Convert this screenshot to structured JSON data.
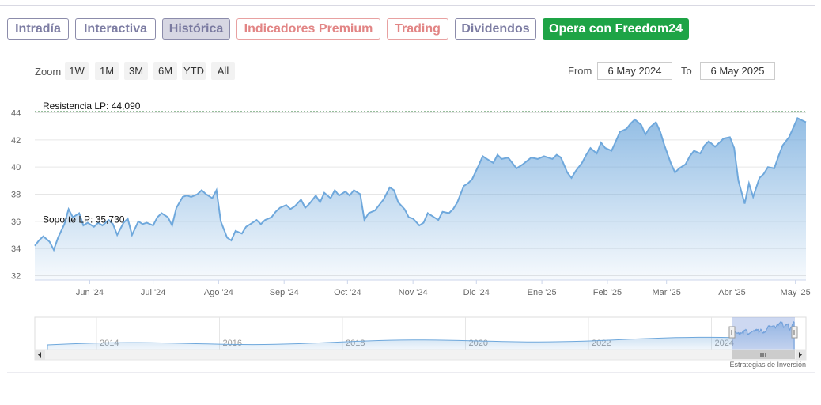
{
  "tabs": [
    {
      "label": "Intradía",
      "style": "normal"
    },
    {
      "label": "Interactiva",
      "style": "normal"
    },
    {
      "label": "Histórica",
      "style": "active"
    },
    {
      "label": "Indicadores Premium",
      "style": "premium"
    },
    {
      "label": "Trading",
      "style": "premium"
    },
    {
      "label": "Dividendos",
      "style": "normal"
    },
    {
      "label": "Opera con Freedom24",
      "style": "cta"
    }
  ],
  "zoom": {
    "label": "Zoom",
    "buttons": [
      "1W",
      "1M",
      "3M",
      "6M",
      "YTD",
      "All"
    ]
  },
  "range": {
    "from_label": "From",
    "from_value": "6 May 2024",
    "to_label": "To",
    "to_value": "6 May 2025"
  },
  "chart_data": {
    "type": "area",
    "ylim": [
      32,
      44
    ],
    "y_ticks": [
      32,
      34,
      36,
      38,
      40,
      42,
      44
    ],
    "x_range": [
      "2024-05-06",
      "2025-05-06"
    ],
    "x_ticks": [
      {
        "label": "Jun '24",
        "date": "2024-06-01"
      },
      {
        "label": "Jul '24",
        "date": "2024-07-01"
      },
      {
        "label": "Ago '24",
        "date": "2024-08-01"
      },
      {
        "label": "Sep '24",
        "date": "2024-09-01"
      },
      {
        "label": "Oct '24",
        "date": "2024-10-01"
      },
      {
        "label": "Nov '24",
        "date": "2024-11-01"
      },
      {
        "label": "Dic '24",
        "date": "2024-12-01"
      },
      {
        "label": "Ene '25",
        "date": "2025-01-01"
      },
      {
        "label": "Feb '25",
        "date": "2025-02-01"
      },
      {
        "label": "Mar '25",
        "date": "2025-03-01"
      },
      {
        "label": "Abr '25",
        "date": "2025-04-01"
      },
      {
        "label": "May '25",
        "date": "2025-05-01"
      }
    ],
    "series": [
      {
        "color": "#6fa8dc",
        "points": [
          [
            "2024-05-06",
            34.2
          ],
          [
            "2024-05-08",
            34.6
          ],
          [
            "2024-05-10",
            34.9
          ],
          [
            "2024-05-13",
            34.5
          ],
          [
            "2024-05-15",
            33.9
          ],
          [
            "2024-05-17",
            34.8
          ],
          [
            "2024-05-20",
            35.8
          ],
          [
            "2024-05-22",
            36.9
          ],
          [
            "2024-05-24",
            36.3
          ],
          [
            "2024-05-27",
            36.6
          ],
          [
            "2024-05-29",
            35.7
          ],
          [
            "2024-05-31",
            35.9
          ],
          [
            "2024-06-03",
            35.6
          ],
          [
            "2024-06-05",
            35.9
          ],
          [
            "2024-06-07",
            35.7
          ],
          [
            "2024-06-10",
            36.1
          ],
          [
            "2024-06-12",
            35.8
          ],
          [
            "2024-06-14",
            35.0
          ],
          [
            "2024-06-17",
            35.9
          ],
          [
            "2024-06-19",
            36.2
          ],
          [
            "2024-06-21",
            35.0
          ],
          [
            "2024-06-24",
            36.0
          ],
          [
            "2024-06-26",
            35.8
          ],
          [
            "2024-06-28",
            35.9
          ],
          [
            "2024-07-01",
            35.7
          ],
          [
            "2024-07-03",
            36.3
          ],
          [
            "2024-07-05",
            36.6
          ],
          [
            "2024-07-08",
            36.3
          ],
          [
            "2024-07-10",
            35.7
          ],
          [
            "2024-07-12",
            37.0
          ],
          [
            "2024-07-15",
            37.8
          ],
          [
            "2024-07-17",
            37.9
          ],
          [
            "2024-07-19",
            37.8
          ],
          [
            "2024-07-22",
            38.0
          ],
          [
            "2024-07-24",
            38.3
          ],
          [
            "2024-07-26",
            38.0
          ],
          [
            "2024-07-29",
            37.7
          ],
          [
            "2024-07-31",
            38.3
          ],
          [
            "2024-08-02",
            36.0
          ],
          [
            "2024-08-05",
            34.8
          ],
          [
            "2024-08-07",
            34.6
          ],
          [
            "2024-08-09",
            35.3
          ],
          [
            "2024-08-12",
            35.1
          ],
          [
            "2024-08-14",
            35.6
          ],
          [
            "2024-08-16",
            35.8
          ],
          [
            "2024-08-19",
            36.1
          ],
          [
            "2024-08-21",
            35.8
          ],
          [
            "2024-08-23",
            36.1
          ],
          [
            "2024-08-26",
            36.3
          ],
          [
            "2024-08-28",
            36.7
          ],
          [
            "2024-08-30",
            37.0
          ],
          [
            "2024-09-02",
            37.2
          ],
          [
            "2024-09-04",
            36.9
          ],
          [
            "2024-09-06",
            37.1
          ],
          [
            "2024-09-09",
            37.6
          ],
          [
            "2024-09-11",
            37.0
          ],
          [
            "2024-09-13",
            37.3
          ],
          [
            "2024-09-16",
            37.9
          ],
          [
            "2024-09-18",
            37.4
          ],
          [
            "2024-09-20",
            38.1
          ],
          [
            "2024-09-23",
            37.7
          ],
          [
            "2024-09-25",
            38.3
          ],
          [
            "2024-09-27",
            37.9
          ],
          [
            "2024-09-30",
            38.2
          ],
          [
            "2024-10-02",
            37.9
          ],
          [
            "2024-10-04",
            38.3
          ],
          [
            "2024-10-07",
            38.0
          ],
          [
            "2024-10-09",
            36.1
          ],
          [
            "2024-10-11",
            36.6
          ],
          [
            "2024-10-14",
            36.8
          ],
          [
            "2024-10-16",
            37.2
          ],
          [
            "2024-10-18",
            37.6
          ],
          [
            "2024-10-21",
            38.5
          ],
          [
            "2024-10-23",
            38.3
          ],
          [
            "2024-10-25",
            37.4
          ],
          [
            "2024-10-28",
            36.9
          ],
          [
            "2024-10-30",
            36.3
          ],
          [
            "2024-11-01",
            36.2
          ],
          [
            "2024-11-04",
            35.7
          ],
          [
            "2024-11-06",
            35.9
          ],
          [
            "2024-11-08",
            36.6
          ],
          [
            "2024-11-11",
            36.3
          ],
          [
            "2024-11-13",
            36.1
          ],
          [
            "2024-11-15",
            36.7
          ],
          [
            "2024-11-18",
            36.6
          ],
          [
            "2024-11-20",
            36.9
          ],
          [
            "2024-11-22",
            37.4
          ],
          [
            "2024-11-25",
            38.6
          ],
          [
            "2024-11-27",
            38.8
          ],
          [
            "2024-11-29",
            39.1
          ],
          [
            "2024-12-02",
            40.1
          ],
          [
            "2024-12-04",
            40.8
          ],
          [
            "2024-12-06",
            40.6
          ],
          [
            "2024-12-09",
            40.3
          ],
          [
            "2024-12-11",
            40.9
          ],
          [
            "2024-12-13",
            40.6
          ],
          [
            "2024-12-16",
            40.7
          ],
          [
            "2024-12-18",
            40.3
          ],
          [
            "2024-12-20",
            39.9
          ],
          [
            "2024-12-23",
            40.2
          ],
          [
            "2024-12-27",
            40.7
          ],
          [
            "2024-12-30",
            40.6
          ],
          [
            "2025-01-02",
            40.8
          ],
          [
            "2025-01-06",
            40.6
          ],
          [
            "2025-01-08",
            40.9
          ],
          [
            "2025-01-10",
            40.7
          ],
          [
            "2025-01-13",
            39.6
          ],
          [
            "2025-01-15",
            39.2
          ],
          [
            "2025-01-17",
            39.7
          ],
          [
            "2025-01-20",
            40.3
          ],
          [
            "2025-01-22",
            40.9
          ],
          [
            "2025-01-24",
            41.4
          ],
          [
            "2025-01-27",
            41.0
          ],
          [
            "2025-01-29",
            41.8
          ],
          [
            "2025-01-31",
            41.4
          ],
          [
            "2025-02-03",
            41.2
          ],
          [
            "2025-02-05",
            41.9
          ],
          [
            "2025-02-07",
            42.6
          ],
          [
            "2025-02-10",
            42.8
          ],
          [
            "2025-02-12",
            43.2
          ],
          [
            "2025-02-14",
            43.5
          ],
          [
            "2025-02-17",
            43.1
          ],
          [
            "2025-02-19",
            42.4
          ],
          [
            "2025-02-21",
            42.9
          ],
          [
            "2025-02-24",
            43.3
          ],
          [
            "2025-02-26",
            42.6
          ],
          [
            "2025-02-28",
            41.6
          ],
          [
            "2025-03-03",
            40.3
          ],
          [
            "2025-03-05",
            39.6
          ],
          [
            "2025-03-07",
            39.9
          ],
          [
            "2025-03-10",
            40.2
          ],
          [
            "2025-03-12",
            40.8
          ],
          [
            "2025-03-14",
            41.2
          ],
          [
            "2025-03-17",
            41.0
          ],
          [
            "2025-03-19",
            41.6
          ],
          [
            "2025-03-21",
            41.9
          ],
          [
            "2025-03-24",
            41.5
          ],
          [
            "2025-03-26",
            41.8
          ],
          [
            "2025-03-28",
            42.1
          ],
          [
            "2025-03-31",
            42.2
          ],
          [
            "2025-04-02",
            41.4
          ],
          [
            "2025-04-04",
            39.0
          ],
          [
            "2025-04-07",
            37.3
          ],
          [
            "2025-04-09",
            38.8
          ],
          [
            "2025-04-11",
            37.8
          ],
          [
            "2025-04-14",
            39.2
          ],
          [
            "2025-04-16",
            39.5
          ],
          [
            "2025-04-18",
            40.0
          ],
          [
            "2025-04-21",
            39.9
          ],
          [
            "2025-04-23",
            40.8
          ],
          [
            "2025-04-25",
            41.6
          ],
          [
            "2025-04-28",
            42.2
          ],
          [
            "2025-04-30",
            42.9
          ],
          [
            "2025-05-02",
            43.6
          ],
          [
            "2025-05-06",
            43.3
          ]
        ]
      }
    ],
    "lines": [
      {
        "label": "Resistencia LP: 44,090",
        "value": 44.09,
        "color": "#2f7d3a"
      },
      {
        "label": "Soporte LP: 35,730",
        "value": 35.73,
        "color": "#9b2020"
      }
    ]
  },
  "navigator": {
    "year_labels": [
      "2014",
      "2016",
      "2018",
      "2020",
      "2022",
      "2024"
    ],
    "scroll_icon": "scroll-grip-icon"
  },
  "brand": "Estrategias de Inversión"
}
